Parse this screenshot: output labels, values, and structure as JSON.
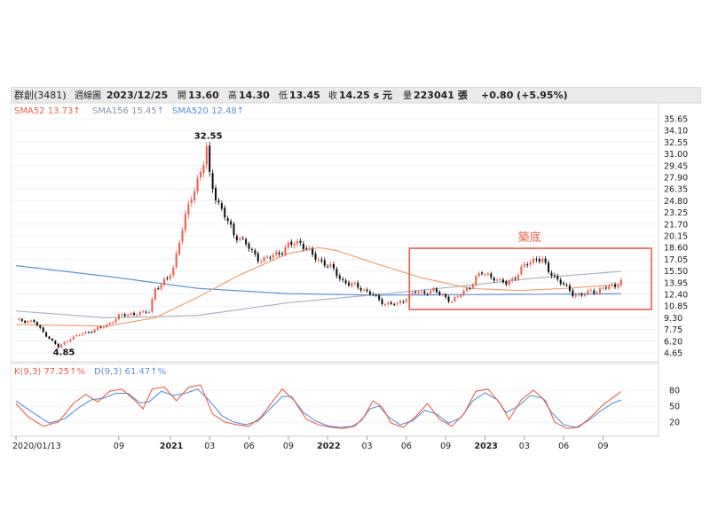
{
  "header": {
    "stock_name": "群創(3481)",
    "chart_kind": "週線圖",
    "date": "2023/12/25",
    "open_label": "開",
    "open": "13.60",
    "high_label": "高",
    "high": "14.30",
    "low_label": "低",
    "low": "13.45",
    "close_label": "收",
    "close": "14.25 s 元",
    "volume_label": "量",
    "volume": "223041 張",
    "change": "+0.80 (+5.95%)"
  },
  "legend": {
    "sma52": "SMA52 13.73↑",
    "sma156": "SMA156 15.45↑",
    "sma520": "SMA520 12.48↑",
    "k": "K(9,3) 77.25↑%",
    "d": "D(9,3) 61.47↑%"
  },
  "colors": {
    "up": "#e8604c",
    "down": "#111111",
    "sma52": "#f0a070",
    "sma156": "#aab4c4",
    "sma520": "#5b8fd6",
    "k_line": "#e8604c",
    "d_line": "#5b8fd6",
    "box": "#e8604c",
    "axis_text": "#222222"
  },
  "annotations": {
    "peak_label": "32.55",
    "low_label": "4.85",
    "box_label": "築底"
  },
  "chart_data": {
    "type": "candlestick",
    "price_axis_ticks": [
      "35.65",
      "34.10",
      "32.55",
      "31.00",
      "29.45",
      "27.90",
      "26.35",
      "24.80",
      "23.25",
      "21.70",
      "20.15",
      "18.60",
      "17.05",
      "15.50",
      "13.95",
      "12.40",
      "10.85",
      "9.30",
      "7.75",
      "6.20",
      "4.65"
    ],
    "ylim": [
      4.65,
      35.65
    ],
    "kd_axis_ticks": [
      "80",
      "50",
      "20"
    ],
    "x_axis_labels": [
      "2020/01/13",
      "09",
      "2021",
      "03",
      "06",
      "09",
      "2022",
      "03",
      "06",
      "09",
      "2023",
      "03",
      "06",
      "09"
    ],
    "x_axis_weeks": [
      0,
      34,
      51,
      64,
      77,
      90,
      103,
      116,
      129,
      142,
      155,
      168,
      181,
      194
    ],
    "box": {
      "week_start": 130,
      "week_end": 210,
      "price_low": 10.4,
      "price_high": 18.5
    },
    "price_anchors": [
      [
        0,
        9.0
      ],
      [
        6,
        8.8
      ],
      [
        8,
        7.8
      ],
      [
        12,
        6.2
      ],
      [
        14,
        5.4
      ],
      [
        18,
        6.6
      ],
      [
        22,
        7.2
      ],
      [
        26,
        7.7
      ],
      [
        30,
        8.3
      ],
      [
        34,
        9.5
      ],
      [
        38,
        9.8
      ],
      [
        42,
        9.9
      ],
      [
        44,
        10.2
      ],
      [
        46,
        13.2
      ],
      [
        48,
        13.6
      ],
      [
        50,
        14.5
      ],
      [
        52,
        16.0
      ],
      [
        54,
        19.5
      ],
      [
        56,
        22.5
      ],
      [
        58,
        25.5
      ],
      [
        60,
        27.5
      ],
      [
        62,
        29.8
      ],
      [
        63,
        31.5
      ],
      [
        64,
        28.0
      ],
      [
        66,
        25.5
      ],
      [
        68,
        23.5
      ],
      [
        70,
        22.0
      ],
      [
        72,
        20.3
      ],
      [
        74,
        20.0
      ],
      [
        76,
        19.0
      ],
      [
        78,
        18.0
      ],
      [
        80,
        17.2
      ],
      [
        82,
        17.0
      ],
      [
        84,
        17.3
      ],
      [
        86,
        17.8
      ],
      [
        88,
        18.2
      ],
      [
        90,
        18.8
      ],
      [
        92,
        19.2
      ],
      [
        94,
        19.3
      ],
      [
        96,
        18.5
      ],
      [
        98,
        17.5
      ],
      [
        100,
        17.0
      ],
      [
        102,
        16.5
      ],
      [
        104,
        16.0
      ],
      [
        106,
        15.0
      ],
      [
        108,
        14.2
      ],
      [
        110,
        13.8
      ],
      [
        112,
        13.5
      ],
      [
        114,
        13.2
      ],
      [
        116,
        12.8
      ],
      [
        118,
        12.3
      ],
      [
        120,
        11.6
      ],
      [
        122,
        11.2
      ],
      [
        124,
        11.2
      ],
      [
        126,
        11.0
      ],
      [
        128,
        11.6
      ],
      [
        130,
        12.4
      ],
      [
        132,
        12.7
      ],
      [
        134,
        12.5
      ],
      [
        136,
        12.8
      ],
      [
        138,
        13.0
      ],
      [
        140,
        12.4
      ],
      [
        142,
        12.0
      ],
      [
        144,
        11.6
      ],
      [
        146,
        12.0
      ],
      [
        148,
        12.8
      ],
      [
        150,
        13.5
      ],
      [
        152,
        14.6
      ],
      [
        154,
        15.2
      ],
      [
        156,
        15.0
      ],
      [
        158,
        14.6
      ],
      [
        160,
        14.0
      ],
      [
        162,
        13.9
      ],
      [
        164,
        14.5
      ],
      [
        166,
        15.1
      ],
      [
        168,
        16.2
      ],
      [
        170,
        16.8
      ],
      [
        172,
        17.2
      ],
      [
        174,
        16.8
      ],
      [
        176,
        15.5
      ],
      [
        178,
        14.8
      ],
      [
        180,
        14.0
      ],
      [
        182,
        13.2
      ],
      [
        184,
        12.5
      ],
      [
        186,
        12.3
      ],
      [
        188,
        12.4
      ],
      [
        190,
        12.8
      ],
      [
        192,
        12.9
      ],
      [
        194,
        13.2
      ],
      [
        196,
        13.3
      ],
      [
        198,
        13.6
      ],
      [
        200,
        14.25
      ]
    ],
    "sma52_anchors": [
      [
        0,
        8.4
      ],
      [
        30,
        8.2
      ],
      [
        46,
        9.3
      ],
      [
        60,
        12.0
      ],
      [
        74,
        15.0
      ],
      [
        90,
        17.8
      ],
      [
        100,
        18.6
      ],
      [
        106,
        18.2
      ],
      [
        118,
        16.6
      ],
      [
        134,
        14.6
      ],
      [
        150,
        13.2
      ],
      [
        166,
        12.9
      ],
      [
        182,
        13.2
      ],
      [
        200,
        13.73
      ]
    ],
    "sma156_anchors": [
      [
        0,
        10.2
      ],
      [
        30,
        9.3
      ],
      [
        60,
        9.6
      ],
      [
        90,
        11.3
      ],
      [
        120,
        12.4
      ],
      [
        150,
        13.6
      ],
      [
        170,
        14.5
      ],
      [
        200,
        15.45
      ]
    ],
    "sma520_anchors": [
      [
        0,
        16.2
      ],
      [
        30,
        14.8
      ],
      [
        60,
        13.2
      ],
      [
        90,
        12.5
      ],
      [
        120,
        12.3
      ],
      [
        160,
        12.4
      ],
      [
        200,
        12.48
      ]
    ],
    "k_anchors": [
      [
        0,
        55
      ],
      [
        4,
        30
      ],
      [
        9,
        12
      ],
      [
        14,
        20
      ],
      [
        19,
        55
      ],
      [
        23,
        72
      ],
      [
        27,
        58
      ],
      [
        31,
        78
      ],
      [
        35,
        82
      ],
      [
        39,
        62
      ],
      [
        42,
        45
      ],
      [
        45,
        82
      ],
      [
        49,
        86
      ],
      [
        53,
        60
      ],
      [
        57,
        85
      ],
      [
        61,
        90
      ],
      [
        65,
        35
      ],
      [
        69,
        20
      ],
      [
        73,
        15
      ],
      [
        77,
        12
      ],
      [
        81,
        30
      ],
      [
        85,
        60
      ],
      [
        88,
        82
      ],
      [
        92,
        60
      ],
      [
        96,
        25
      ],
      [
        100,
        15
      ],
      [
        104,
        10
      ],
      [
        108,
        8
      ],
      [
        112,
        12
      ],
      [
        115,
        30
      ],
      [
        118,
        60
      ],
      [
        121,
        48
      ],
      [
        124,
        18
      ],
      [
        128,
        10
      ],
      [
        132,
        30
      ],
      [
        136,
        55
      ],
      [
        140,
        25
      ],
      [
        144,
        12
      ],
      [
        148,
        35
      ],
      [
        152,
        78
      ],
      [
        156,
        82
      ],
      [
        160,
        55
      ],
      [
        163,
        25
      ],
      [
        167,
        62
      ],
      [
        171,
        80
      ],
      [
        175,
        60
      ],
      [
        178,
        20
      ],
      [
        182,
        8
      ],
      [
        186,
        10
      ],
      [
        190,
        30
      ],
      [
        194,
        52
      ],
      [
        197,
        65
      ],
      [
        200,
        77.25
      ]
    ],
    "d_anchors": [
      [
        0,
        60
      ],
      [
        5,
        40
      ],
      [
        11,
        18
      ],
      [
        16,
        26
      ],
      [
        21,
        48
      ],
      [
        25,
        62
      ],
      [
        29,
        65
      ],
      [
        33,
        74
      ],
      [
        37,
        74
      ],
      [
        41,
        56
      ],
      [
        44,
        58
      ],
      [
        48,
        78
      ],
      [
        52,
        70
      ],
      [
        56,
        74
      ],
      [
        60,
        82
      ],
      [
        64,
        60
      ],
      [
        68,
        32
      ],
      [
        72,
        20
      ],
      [
        76,
        15
      ],
      [
        80,
        22
      ],
      [
        84,
        45
      ],
      [
        88,
        68
      ],
      [
        91,
        68
      ],
      [
        95,
        38
      ],
      [
        99,
        22
      ],
      [
        103,
        13
      ],
      [
        107,
        10
      ],
      [
        111,
        12
      ],
      [
        114,
        22
      ],
      [
        117,
        45
      ],
      [
        120,
        50
      ],
      [
        123,
        30
      ],
      [
        127,
        15
      ],
      [
        131,
        22
      ],
      [
        135,
        42
      ],
      [
        139,
        35
      ],
      [
        143,
        18
      ],
      [
        147,
        28
      ],
      [
        151,
        60
      ],
      [
        155,
        75
      ],
      [
        159,
        62
      ],
      [
        162,
        38
      ],
      [
        166,
        50
      ],
      [
        170,
        70
      ],
      [
        174,
        65
      ],
      [
        177,
        38
      ],
      [
        181,
        15
      ],
      [
        185,
        10
      ],
      [
        189,
        22
      ],
      [
        193,
        40
      ],
      [
        197,
        55
      ],
      [
        200,
        61.47
      ]
    ]
  }
}
